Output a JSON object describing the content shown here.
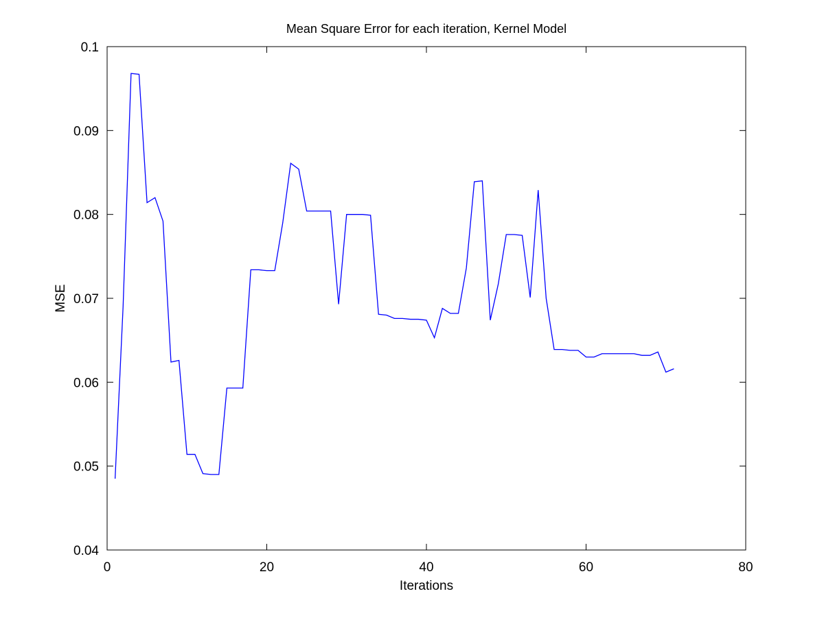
{
  "chart_data": {
    "type": "line",
    "title": "Mean Square Error for each iteration, Kernel Model",
    "xlabel": "Iterations",
    "ylabel": "MSE",
    "xlim": [
      0,
      80
    ],
    "ylim": [
      0.04,
      0.1
    ],
    "xticks": [
      0,
      20,
      40,
      60,
      80
    ],
    "xtick_labels": [
      "0",
      "20",
      "40",
      "60",
      "80"
    ],
    "yticks": [
      0.04,
      0.05,
      0.06,
      0.07,
      0.08,
      0.09,
      0.1
    ],
    "ytick_labels": [
      "0.04",
      "0.05",
      "0.06",
      "0.07",
      "0.08",
      "0.09",
      "0.1"
    ],
    "grid": false,
    "line_color": "#0000ff",
    "series": [
      {
        "x": [
          1,
          2,
          3,
          4,
          5,
          6,
          7,
          8,
          9,
          10,
          11,
          12,
          13,
          14,
          15,
          16,
          17,
          18,
          19,
          20,
          21,
          22,
          23,
          24,
          25,
          26,
          27,
          28,
          29,
          30,
          31,
          32,
          33,
          34,
          35,
          36,
          37,
          38,
          39,
          40,
          41,
          42,
          43,
          44,
          45,
          46,
          47,
          48,
          49,
          50,
          51,
          52,
          53,
          54,
          55,
          56,
          57,
          58,
          59,
          60,
          61,
          62,
          63,
          64,
          65,
          66,
          67,
          68,
          69,
          70,
          71
        ],
        "values": [
          0.0485,
          0.069,
          0.0968,
          0.0967,
          0.0814,
          0.082,
          0.0792,
          0.0624,
          0.0626,
          0.0514,
          0.0514,
          0.0491,
          0.049,
          0.049,
          0.0593,
          0.0593,
          0.0593,
          0.0734,
          0.0734,
          0.0733,
          0.0733,
          0.079,
          0.0861,
          0.0854,
          0.0804,
          0.0804,
          0.0804,
          0.0804,
          0.0693,
          0.08,
          0.08,
          0.08,
          0.0799,
          0.0681,
          0.068,
          0.0676,
          0.0676,
          0.0675,
          0.0675,
          0.0674,
          0.0653,
          0.0688,
          0.0682,
          0.0682,
          0.0736,
          0.0839,
          0.084,
          0.0674,
          0.0717,
          0.0776,
          0.0776,
          0.0775,
          0.0701,
          0.0829,
          0.07,
          0.0639,
          0.0639,
          0.0638,
          0.0638,
          0.063,
          0.063,
          0.0634,
          0.0634,
          0.0634,
          0.0634,
          0.0634,
          0.0632,
          0.0632,
          0.0636,
          0.0612,
          0.0616
        ]
      }
    ]
  }
}
